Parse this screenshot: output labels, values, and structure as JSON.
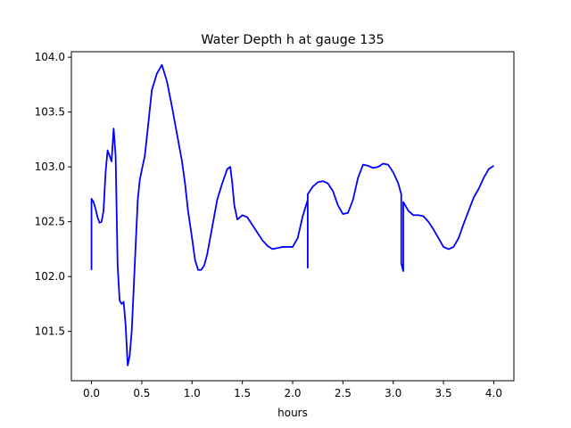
{
  "chart_data": {
    "type": "line",
    "title": "Water Depth h at gauge 135",
    "xlabel": "hours",
    "ylabel": "",
    "xlim": [
      -0.2,
      4.2
    ],
    "ylim": [
      101.05,
      104.05
    ],
    "xticks": [
      0.0,
      0.5,
      1.0,
      1.5,
      2.0,
      2.5,
      3.0,
      3.5,
      4.0
    ],
    "xtick_labels": [
      "0.0",
      "0.5",
      "1.0",
      "1.5",
      "2.0",
      "2.5",
      "3.0",
      "3.5",
      "4.0"
    ],
    "yticks": [
      101.5,
      102.0,
      102.5,
      103.0,
      103.5,
      104.0
    ],
    "ytick_labels": [
      "101.5",
      "102.0",
      "102.5",
      "103.0",
      "103.5",
      "104.0"
    ],
    "grid": false,
    "series": [
      {
        "color": "#0000ff",
        "x": [
          0.0,
          0.0,
          0.02,
          0.04,
          0.06,
          0.08,
          0.1,
          0.12,
          0.14,
          0.16,
          0.18,
          0.2,
          0.22,
          0.24,
          0.26,
          0.28,
          0.3,
          0.32,
          0.34,
          0.36,
          0.38,
          0.4,
          0.42,
          0.44,
          0.46,
          0.48,
          0.5,
          0.53,
          0.56,
          0.6,
          0.65,
          0.7,
          0.75,
          0.8,
          0.85,
          0.9,
          0.93,
          0.96,
          1.0,
          1.03,
          1.06,
          1.09,
          1.12,
          1.15,
          1.2,
          1.25,
          1.3,
          1.35,
          1.38,
          1.4,
          1.42,
          1.45,
          1.5,
          1.55,
          1.6,
          1.65,
          1.7,
          1.75,
          1.8,
          1.85,
          1.9,
          1.95,
          2.0,
          2.05,
          2.1,
          2.15,
          2.15,
          2.15,
          2.2,
          2.25,
          2.3,
          2.35,
          2.4,
          2.45,
          2.5,
          2.55,
          2.6,
          2.65,
          2.7,
          2.75,
          2.8,
          2.85,
          2.9,
          2.95,
          3.0,
          3.05,
          3.08,
          3.08,
          3.1,
          3.1,
          3.15,
          3.2,
          3.25,
          3.3,
          3.35,
          3.4,
          3.45,
          3.5,
          3.55,
          3.6,
          3.65,
          3.7,
          3.75,
          3.8,
          3.85,
          3.9,
          3.95,
          4.0
        ],
        "y": [
          102.06,
          102.71,
          102.68,
          102.62,
          102.54,
          102.49,
          102.5,
          102.6,
          102.95,
          103.15,
          103.1,
          103.05,
          103.35,
          103.1,
          102.1,
          101.78,
          101.75,
          101.77,
          101.55,
          101.19,
          101.28,
          101.5,
          101.9,
          102.3,
          102.7,
          102.88,
          102.97,
          103.1,
          103.35,
          103.7,
          103.85,
          103.93,
          103.78,
          103.55,
          103.3,
          103.05,
          102.85,
          102.6,
          102.35,
          102.15,
          102.06,
          102.06,
          102.1,
          102.2,
          102.45,
          102.7,
          102.85,
          102.98,
          103.0,
          102.85,
          102.65,
          102.52,
          102.56,
          102.54,
          102.47,
          102.4,
          102.33,
          102.28,
          102.25,
          102.26,
          102.27,
          102.27,
          102.27,
          102.35,
          102.55,
          102.7,
          102.08,
          102.75,
          102.82,
          102.86,
          102.87,
          102.85,
          102.78,
          102.65,
          102.57,
          102.58,
          102.7,
          102.9,
          103.02,
          103.01,
          102.99,
          103.0,
          103.03,
          103.02,
          102.95,
          102.85,
          102.75,
          102.12,
          102.05,
          102.68,
          102.6,
          102.56,
          102.56,
          102.55,
          102.5,
          102.43,
          102.35,
          102.27,
          102.25,
          102.27,
          102.35,
          102.48,
          102.6,
          102.72,
          102.8,
          102.9,
          102.98,
          103.01
        ]
      }
    ]
  }
}
